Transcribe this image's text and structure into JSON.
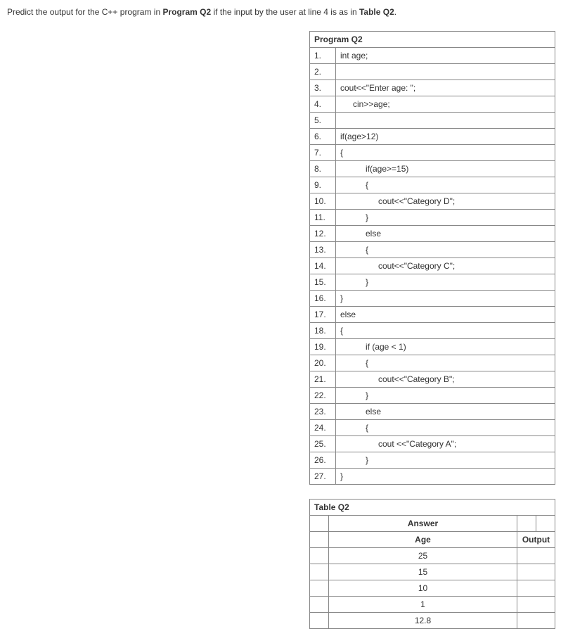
{
  "question": {
    "prefix": "Predict the output for the C++ program in ",
    "program_ref": "Program Q2",
    "mid": " if the input by the user at line 4 is as in ",
    "table_ref": "Table Q2",
    "suffix": "."
  },
  "program": {
    "title": "Program Q2",
    "lines": [
      {
        "n": "1.",
        "code": "int age;",
        "indent": 0
      },
      {
        "n": "2.",
        "code": "",
        "indent": 0
      },
      {
        "n": "3.",
        "code": "cout<<\"Enter age: \";",
        "indent": 0
      },
      {
        "n": "4.",
        "code": "cin>>age;",
        "indent": 1
      },
      {
        "n": "5.",
        "code": "",
        "indent": 0
      },
      {
        "n": "6.",
        "code": "if(age>12)",
        "indent": 0
      },
      {
        "n": "7.",
        "code": "{",
        "indent": 0
      },
      {
        "n": "8.",
        "code": "if(age>=15)",
        "indent": 2
      },
      {
        "n": "9.",
        "code": "{",
        "indent": 2
      },
      {
        "n": "10.",
        "code": "cout<<\"Category D\";",
        "indent": 3
      },
      {
        "n": "11.",
        "code": "}",
        "indent": 2
      },
      {
        "n": "12.",
        "code": "else",
        "indent": 2
      },
      {
        "n": "13.",
        "code": "{",
        "indent": 2
      },
      {
        "n": "14.",
        "code": "cout<<\"Category C\";",
        "indent": 3
      },
      {
        "n": "15.",
        "code": "}",
        "indent": 2
      },
      {
        "n": "16.",
        "code": "}",
        "indent": 0
      },
      {
        "n": "17.",
        "code": "else",
        "indent": 0
      },
      {
        "n": "18.",
        "code": "{",
        "indent": 0
      },
      {
        "n": "19.",
        "code": "if (age < 1)",
        "indent": 2
      },
      {
        "n": "20.",
        "code": "{",
        "indent": 2
      },
      {
        "n": "21.",
        "code": "cout<<\"Category B\";",
        "indent": 3
      },
      {
        "n": "22.",
        "code": "}",
        "indent": 2
      },
      {
        "n": "23.",
        "code": "else",
        "indent": 2
      },
      {
        "n": "24.",
        "code": "{",
        "indent": 2
      },
      {
        "n": "25.",
        "code": "cout <<\"Category A\";",
        "indent": 3
      },
      {
        "n": "26.",
        "code": "}",
        "indent": 2
      },
      {
        "n": "27.",
        "code": "}",
        "indent": 0
      }
    ]
  },
  "answer_table": {
    "title": "Table Q2",
    "answer_label": "Answer",
    "columns": [
      "Age",
      "Output"
    ],
    "rows": [
      {
        "age": "25",
        "output": ""
      },
      {
        "age": "15",
        "output": ""
      },
      {
        "age": "10",
        "output": ""
      },
      {
        "age": "1",
        "output": ""
      },
      {
        "age": "12.8",
        "output": ""
      }
    ]
  }
}
